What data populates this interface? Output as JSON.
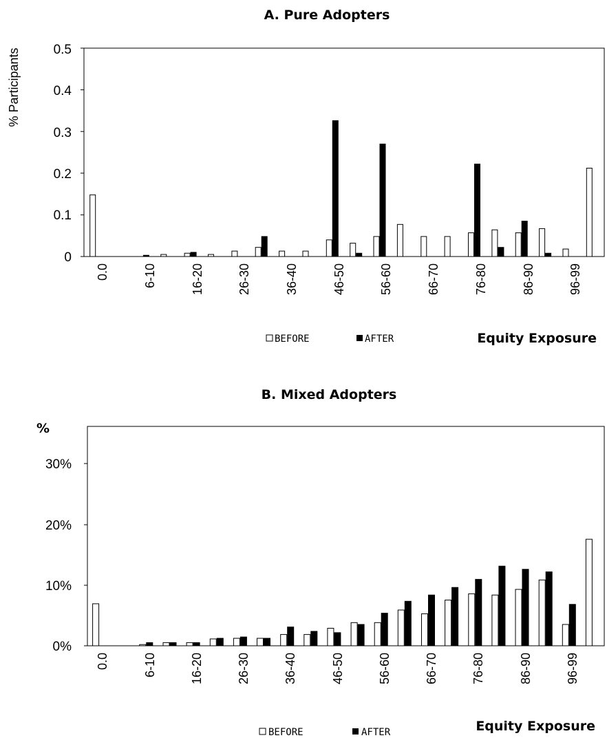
{
  "chart_data": [
    {
      "type": "bar",
      "title": "A. Pure Adopters",
      "ylabel": "% Participants",
      "xlabel": "Equity Exposure",
      "ylim": [
        0,
        0.5
      ],
      "yticks": [
        "0",
        "0.1",
        "0.2",
        "0.3",
        "0.4",
        "0.5"
      ],
      "categories": [
        "0.0",
        "1-5",
        "6-10",
        "11-15",
        "16-20",
        "21-25",
        "26-30",
        "31-35",
        "36-40",
        "41-45",
        "46-50",
        "51-55",
        "56-60",
        "61-65",
        "66-70",
        "71-75",
        "76-80",
        "81-85",
        "86-90",
        "91-95",
        "96-99",
        "100"
      ],
      "category_labels_shown": [
        "0.0",
        "6-10",
        "16-20",
        "26-30",
        "36-40",
        "46-50",
        "56-60",
        "66-70",
        "76-80",
        "86-90",
        "96-99"
      ],
      "series": [
        {
          "name": "BEFORE",
          "values": [
            0.148,
            0,
            0,
            0.005,
            0.008,
            0.005,
            0.013,
            0.022,
            0.013,
            0.013,
            0.04,
            0.032,
            0.048,
            0.077,
            0.048,
            0.048,
            0.057,
            0.064,
            0.057,
            0.067,
            0.018,
            0.212
          ]
        },
        {
          "name": "AFTER",
          "values": [
            0,
            0,
            0.003,
            0,
            0.01,
            0,
            0,
            0.048,
            0,
            0,
            0.326,
            0.008,
            0.27,
            0,
            0,
            0,
            0.222,
            0.022,
            0.085,
            0.008,
            0,
            0
          ]
        }
      ],
      "legend": "bottom",
      "grid": false
    },
    {
      "type": "bar",
      "title": "B.  Mixed Adopters",
      "ylabel": "%",
      "xlabel": "Equity Exposure",
      "ylim": [
        0,
        0.35
      ],
      "yticks": [
        "0%",
        "10%",
        "20%",
        "30%"
      ],
      "categories": [
        "0.0",
        "1-5",
        "6-10",
        "11-15",
        "16-20",
        "21-25",
        "26-30",
        "31-35",
        "36-40",
        "41-45",
        "46-50",
        "51-55",
        "56-60",
        "61-65",
        "66-70",
        "71-75",
        "76-80",
        "81-85",
        "86-90",
        "91-95",
        "96-99",
        "100"
      ],
      "category_labels_shown": [
        "0.0",
        "6-10",
        "16-20",
        "26-30",
        "36-40",
        "46-50",
        "56-60",
        "66-70",
        "76-80",
        "86-90",
        "96-99"
      ],
      "series": [
        {
          "name": "BEFORE",
          "values": [
            0.067,
            0,
            0.002,
            0.005,
            0.005,
            0.011,
            0.012,
            0.012,
            0.018,
            0.018,
            0.028,
            0.037,
            0.037,
            0.057,
            0.051,
            0.073,
            0.083,
            0.081,
            0.09,
            0.105,
            0.034,
            0.17
          ]
        },
        {
          "name": "AFTER",
          "values": [
            0,
            0,
            0.005,
            0.005,
            0.005,
            0.012,
            0.014,
            0.012,
            0.03,
            0.023,
            0.021,
            0.034,
            0.052,
            0.071,
            0.081,
            0.093,
            0.106,
            0.127,
            0.122,
            0.118,
            0.066,
            0
          ]
        }
      ],
      "legend": "bottom",
      "grid": false
    }
  ]
}
